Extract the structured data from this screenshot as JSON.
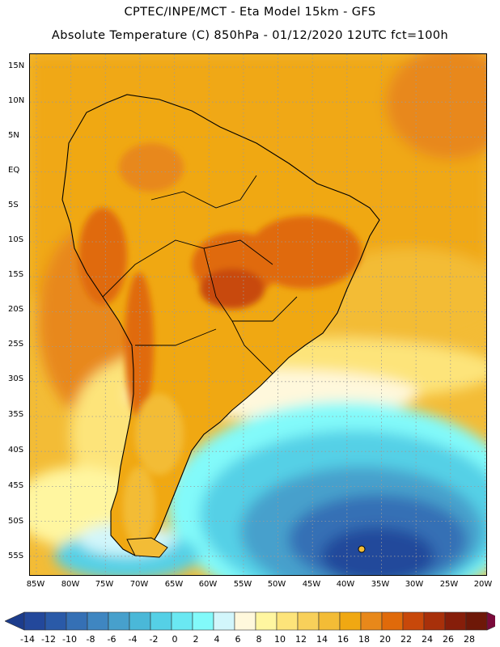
{
  "header": {
    "line1": "CPTEC/INPE/MCT -  Eta Model 15km - GFS",
    "line2": "Absolute Temperature (C) 850hPa - 01/12/2020 12UTC fct=100h"
  },
  "map": {
    "lat_labels": [
      "15N",
      "10N",
      "5N",
      "EQ",
      "5S",
      "10S",
      "15S",
      "20S",
      "25S",
      "30S",
      "35S",
      "40S",
      "45S",
      "50S",
      "55S"
    ],
    "lon_labels": [
      "85W",
      "80W",
      "75W",
      "70W",
      "65W",
      "60W",
      "55W",
      "50W",
      "45W",
      "40W",
      "35W",
      "30W",
      "25W",
      "20W"
    ]
  },
  "colorbar": {
    "labels": [
      "-14",
      "-12",
      "-10",
      "-8",
      "-6",
      "-4",
      "-2",
      "0",
      "2",
      "4",
      "6",
      "8",
      "10",
      "12",
      "14",
      "16",
      "18",
      "20",
      "22",
      "24",
      "26",
      "28"
    ],
    "colors": [
      "#1c3c8c",
      "#23489b",
      "#2a5aa8",
      "#3570b5",
      "#3f86c1",
      "#47a0cc",
      "#4ab8d8",
      "#55d0e6",
      "#6ae8f2",
      "#82fafa",
      "#d2f6fb",
      "#fff8dc",
      "#fff6a0",
      "#fde47a",
      "#f8d05a",
      "#f3bc36",
      "#f0a812",
      "#e8881a",
      "#e06a0a",
      "#c8480a",
      "#a8300a",
      "#861e0a",
      "#6e1808",
      "#7a0a3a"
    ],
    "arrow_left_color": "#1c3c8c",
    "arrow_right_color": "#7a0a3a"
  },
  "fields": {
    "ocean_north": "#f0a812",
    "ocean_mid": "#f3bc36",
    "ocean_south_warm": "#fde47a",
    "cold_core": "#2a5aa8",
    "land_hot": "#e06a0a"
  }
}
